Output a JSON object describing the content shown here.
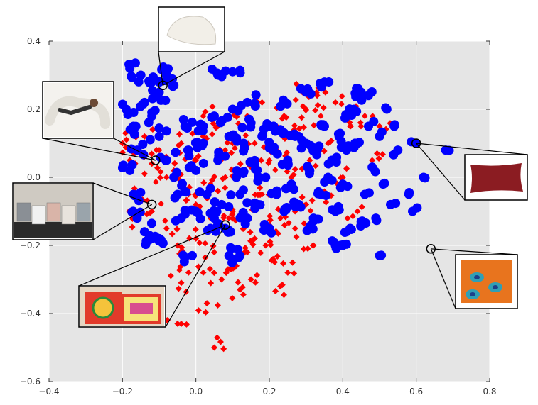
{
  "chart_data": {
    "type": "scatter",
    "title": "",
    "xlabel": "",
    "ylabel": "",
    "xlim": [
      -0.4,
      0.8
    ],
    "ylim": [
      -0.6,
      0.4
    ],
    "x_ticks": [
      -0.4,
      -0.2,
      0.0,
      0.2,
      0.4,
      0.6,
      0.8
    ],
    "x_tick_labels": [
      "−0.4",
      "−0.2",
      "0.0",
      "0.2",
      "0.4",
      "0.6",
      "0.8"
    ],
    "y_ticks": [
      -0.6,
      -0.4,
      -0.2,
      0.0,
      0.2,
      0.4
    ],
    "y_tick_labels": [
      "−0.6",
      "−0.4",
      "−0.2",
      "0.0",
      "0.2",
      "0.4"
    ],
    "grid": true,
    "background_color": "#e5e5e5",
    "legend": "none",
    "series": [
      {
        "color": "#ff0000",
        "marker": "diamond",
        "points": [
          [
            -0.2,
            0.1
          ],
          [
            -0.18,
            0.05
          ],
          [
            -0.15,
            -0.05
          ],
          [
            -0.14,
            0.12
          ],
          [
            -0.12,
            -0.1
          ],
          [
            -0.1,
            0.08
          ],
          [
            -0.08,
            -0.15
          ],
          [
            -0.06,
            0.02
          ],
          [
            -0.05,
            -0.2
          ],
          [
            -0.04,
            0.1
          ],
          [
            -0.03,
            -0.25
          ],
          [
            -0.02,
            -0.05
          ],
          [
            0.0,
            0.05
          ],
          [
            0.0,
            -0.18
          ],
          [
            0.02,
            0.12
          ],
          [
            0.02,
            -0.28
          ],
          [
            0.04,
            -0.02
          ],
          [
            0.05,
            -0.22
          ],
          [
            0.06,
            0.15
          ],
          [
            0.07,
            -0.3
          ],
          [
            0.08,
            0.08
          ],
          [
            0.09,
            -0.12
          ],
          [
            0.1,
            0.2
          ],
          [
            0.11,
            -0.26
          ],
          [
            0.12,
            0.02
          ],
          [
            0.13,
            -0.15
          ],
          [
            0.14,
            0.18
          ],
          [
            0.15,
            -0.3
          ],
          [
            0.16,
            0.1
          ],
          [
            0.17,
            -0.08
          ],
          [
            0.18,
            0.22
          ],
          [
            0.19,
            -0.2
          ],
          [
            0.2,
            0.05
          ],
          [
            0.21,
            -0.24
          ],
          [
            0.22,
            0.15
          ],
          [
            0.23,
            -0.12
          ],
          [
            0.24,
            0.18
          ],
          [
            0.25,
            -0.28
          ],
          [
            0.26,
            0.0
          ],
          [
            0.27,
            -0.15
          ],
          [
            0.28,
            0.12
          ],
          [
            0.29,
            0.25
          ],
          [
            0.3,
            -0.08
          ],
          [
            0.31,
            0.05
          ],
          [
            0.32,
            -0.2
          ],
          [
            0.34,
            0.18
          ],
          [
            0.35,
            -0.05
          ],
          [
            0.36,
            0.1
          ],
          [
            0.38,
            0.22
          ],
          [
            0.4,
            0.0
          ],
          [
            0.42,
            0.15
          ],
          [
            0.44,
            -0.1
          ],
          [
            0.46,
            0.18
          ],
          [
            0.48,
            0.05
          ],
          [
            0.5,
            0.15
          ],
          [
            -0.05,
            -0.43
          ],
          [
            0.03,
            -0.37
          ],
          [
            0.05,
            -0.5
          ],
          [
            -0.04,
            -0.31
          ],
          [
            0.12,
            -0.33
          ],
          [
            0.23,
            -0.32
          ],
          [
            0.1,
            -0.1
          ],
          [
            0.0,
            -0.08
          ],
          [
            0.06,
            -0.04
          ],
          [
            -0.08,
            0.0
          ],
          [
            0.16,
            -0.18
          ],
          [
            0.2,
            -0.14
          ],
          [
            0.27,
            -0.1
          ],
          [
            0.3,
            0.2
          ],
          [
            0.33,
            0.24
          ],
          [
            0.14,
            -0.22
          ],
          [
            0.18,
            -0.05
          ],
          [
            0.08,
            0.0
          ],
          [
            0.02,
            0.18
          ],
          [
            -0.16,
            -0.12
          ],
          [
            -0.12,
            0.04
          ],
          [
            0.22,
            0.08
          ],
          [
            0.26,
            0.12
          ],
          [
            0.04,
            -0.12
          ],
          [
            0.1,
            0.1
          ]
        ]
      },
      {
        "color": "#0000ff",
        "marker": "circle",
        "points": [
          [
            -0.18,
            0.32
          ],
          [
            -0.15,
            0.3
          ],
          [
            -0.12,
            0.28
          ],
          [
            -0.1,
            0.25
          ],
          [
            -0.08,
            0.3
          ],
          [
            -0.06,
            0.27
          ],
          [
            -0.19,
            0.2
          ],
          [
            -0.17,
            0.15
          ],
          [
            -0.16,
            0.08
          ],
          [
            -0.18,
            0.02
          ],
          [
            -0.17,
            -0.05
          ],
          [
            -0.16,
            -0.12
          ],
          [
            -0.14,
            -0.16
          ],
          [
            -0.12,
            -0.18
          ],
          [
            -0.1,
            -0.18
          ],
          [
            -0.14,
            0.22
          ],
          [
            -0.12,
            0.18
          ],
          [
            -0.1,
            0.12
          ],
          [
            -0.08,
            0.05
          ],
          [
            -0.06,
            0.0
          ],
          [
            -0.05,
            -0.05
          ],
          [
            -0.04,
            -0.12
          ],
          [
            -0.03,
            0.15
          ],
          [
            -0.02,
            0.08
          ],
          [
            0.0,
            0.02
          ],
          [
            0.0,
            -0.1
          ],
          [
            0.02,
            0.1
          ],
          [
            0.03,
            -0.05
          ],
          [
            0.04,
            -0.15
          ],
          [
            0.05,
            0.18
          ],
          [
            0.06,
            0.05
          ],
          [
            0.07,
            -0.08
          ],
          [
            0.08,
            -0.15
          ],
          [
            0.09,
            0.12
          ],
          [
            0.1,
            0.2
          ],
          [
            0.11,
            0.0
          ],
          [
            0.12,
            -0.05
          ],
          [
            0.13,
            0.1
          ],
          [
            0.14,
            -0.12
          ],
          [
            0.15,
            0.16
          ],
          [
            0.16,
            0.04
          ],
          [
            0.17,
            -0.08
          ],
          [
            0.18,
            0.12
          ],
          [
            0.19,
            0.0
          ],
          [
            0.2,
            -0.15
          ],
          [
            0.21,
            0.08
          ],
          [
            0.22,
            -0.05
          ],
          [
            0.23,
            0.14
          ],
          [
            0.24,
            -0.1
          ],
          [
            0.25,
            0.05
          ],
          [
            0.26,
            -0.02
          ],
          [
            0.27,
            0.12
          ],
          [
            0.28,
            -0.08
          ],
          [
            0.3,
            0.1
          ],
          [
            0.31,
            0.02
          ],
          [
            0.32,
            -0.12
          ],
          [
            0.33,
            0.08
          ],
          [
            0.34,
            -0.05
          ],
          [
            0.35,
            0.15
          ],
          [
            0.36,
            0.0
          ],
          [
            0.37,
            0.05
          ],
          [
            0.38,
            -0.1
          ],
          [
            0.39,
            0.12
          ],
          [
            0.4,
            -0.02
          ],
          [
            0.41,
            0.08
          ],
          [
            0.42,
            -0.15
          ],
          [
            0.43,
            0.2
          ],
          [
            0.44,
            0.1
          ],
          [
            0.45,
            0.25
          ],
          [
            0.46,
            -0.05
          ],
          [
            0.47,
            0.15
          ],
          [
            0.48,
            0.03
          ],
          [
            0.49,
            -0.12
          ],
          [
            0.5,
            0.12
          ],
          [
            0.51,
            -0.02
          ],
          [
            0.52,
            0.2
          ],
          [
            0.53,
            -0.08
          ],
          [
            0.54,
            0.15
          ],
          [
            0.55,
            0.08
          ],
          [
            0.58,
            -0.05
          ],
          [
            0.6,
            0.1
          ],
          [
            0.62,
            0.0
          ],
          [
            0.68,
            0.08
          ],
          [
            0.59,
            -0.1
          ],
          [
            0.5,
            -0.23
          ],
          [
            0.45,
            -0.13
          ],
          [
            0.38,
            -0.2
          ],
          [
            0.4,
            -0.2
          ],
          [
            0.31,
            -0.15
          ],
          [
            0.35,
            0.28
          ],
          [
            0.3,
            0.25
          ],
          [
            0.1,
            0.31
          ],
          [
            0.06,
            0.3
          ],
          [
            -0.08,
            0.3
          ],
          [
            0.12,
            -0.23
          ],
          [
            -0.01,
            -0.23
          ],
          [
            0.09,
            -0.23
          ],
          [
            0.05,
            -0.12
          ],
          [
            0.02,
            0.15
          ],
          [
            0.14,
            0.22
          ],
          [
            0.2,
            0.15
          ],
          [
            0.24,
            0.22
          ],
          [
            0.44,
            0.24
          ],
          [
            0.47,
            0.24
          ],
          [
            0.41,
            0.18
          ]
        ]
      }
    ],
    "highlighted_points": [
      [
        -0.09,
        0.27
      ],
      [
        -0.11,
        0.05
      ],
      [
        -0.12,
        -0.08
      ],
      [
        0.08,
        -0.14
      ],
      [
        0.6,
        0.1
      ],
      [
        0.64,
        -0.21
      ]
    ],
    "image_insets": [
      {
        "subject": "white half-moon bolster pillow",
        "anchor": [
          -0.09,
          0.27
        ]
      },
      {
        "subject": "woman lying on a U-shaped body pillow",
        "anchor": [
          -0.11,
          0.05
        ]
      },
      {
        "subject": "row of patterned throw pillows on a bench",
        "anchor": [
          -0.12,
          -0.08
        ]
      },
      {
        "subject": "colorful embroidered cushions",
        "anchor": [
          0.08,
          -0.14
        ]
      },
      {
        "subject": "dark red lumbar pillow",
        "anchor": [
          0.6,
          0.1
        ]
      },
      {
        "subject": "orange pillow with peacock feather print",
        "anchor": [
          0.64,
          -0.21
        ]
      }
    ]
  }
}
